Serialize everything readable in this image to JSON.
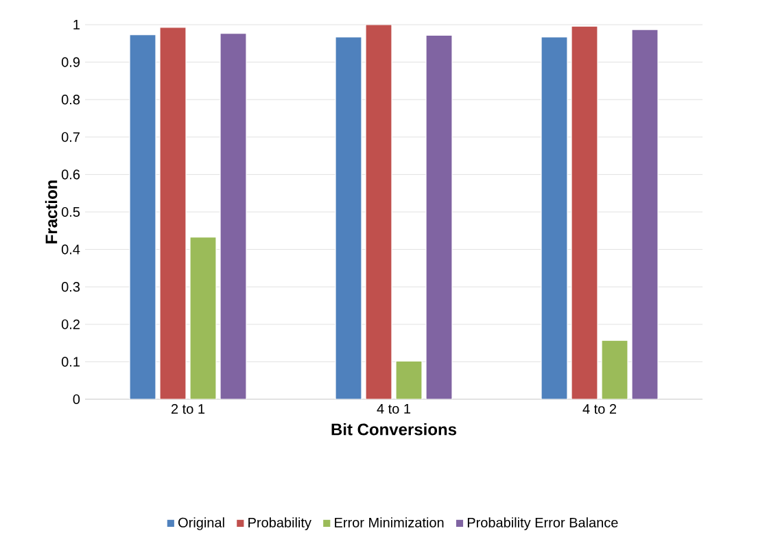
{
  "chart_data": {
    "type": "bar",
    "xlabel": "Bit Conversions",
    "ylabel": "Fraction",
    "categories": [
      "2 to 1",
      "4 to 1",
      "4 to 2"
    ],
    "series": [
      {
        "name": "Original",
        "color": "#4f81bd",
        "values": [
          0.973,
          0.967,
          0.967
        ]
      },
      {
        "name": "Probability",
        "color": "#c0504d",
        "values": [
          0.993,
          1.0,
          0.996
        ]
      },
      {
        "name": "Error Minimization",
        "color": "#9bbb59",
        "values": [
          0.433,
          0.102,
          0.157
        ]
      },
      {
        "name": "Probability Error Balance",
        "color": "#8064a2",
        "values": [
          0.977,
          0.972,
          0.987
        ]
      }
    ],
    "ylim": [
      0,
      1
    ],
    "yticks": [
      0,
      0.1,
      0.2,
      0.3,
      0.4,
      0.5,
      0.6,
      0.7,
      0.8,
      0.9,
      1
    ],
    "grid": "y",
    "legend": "bottom"
  }
}
